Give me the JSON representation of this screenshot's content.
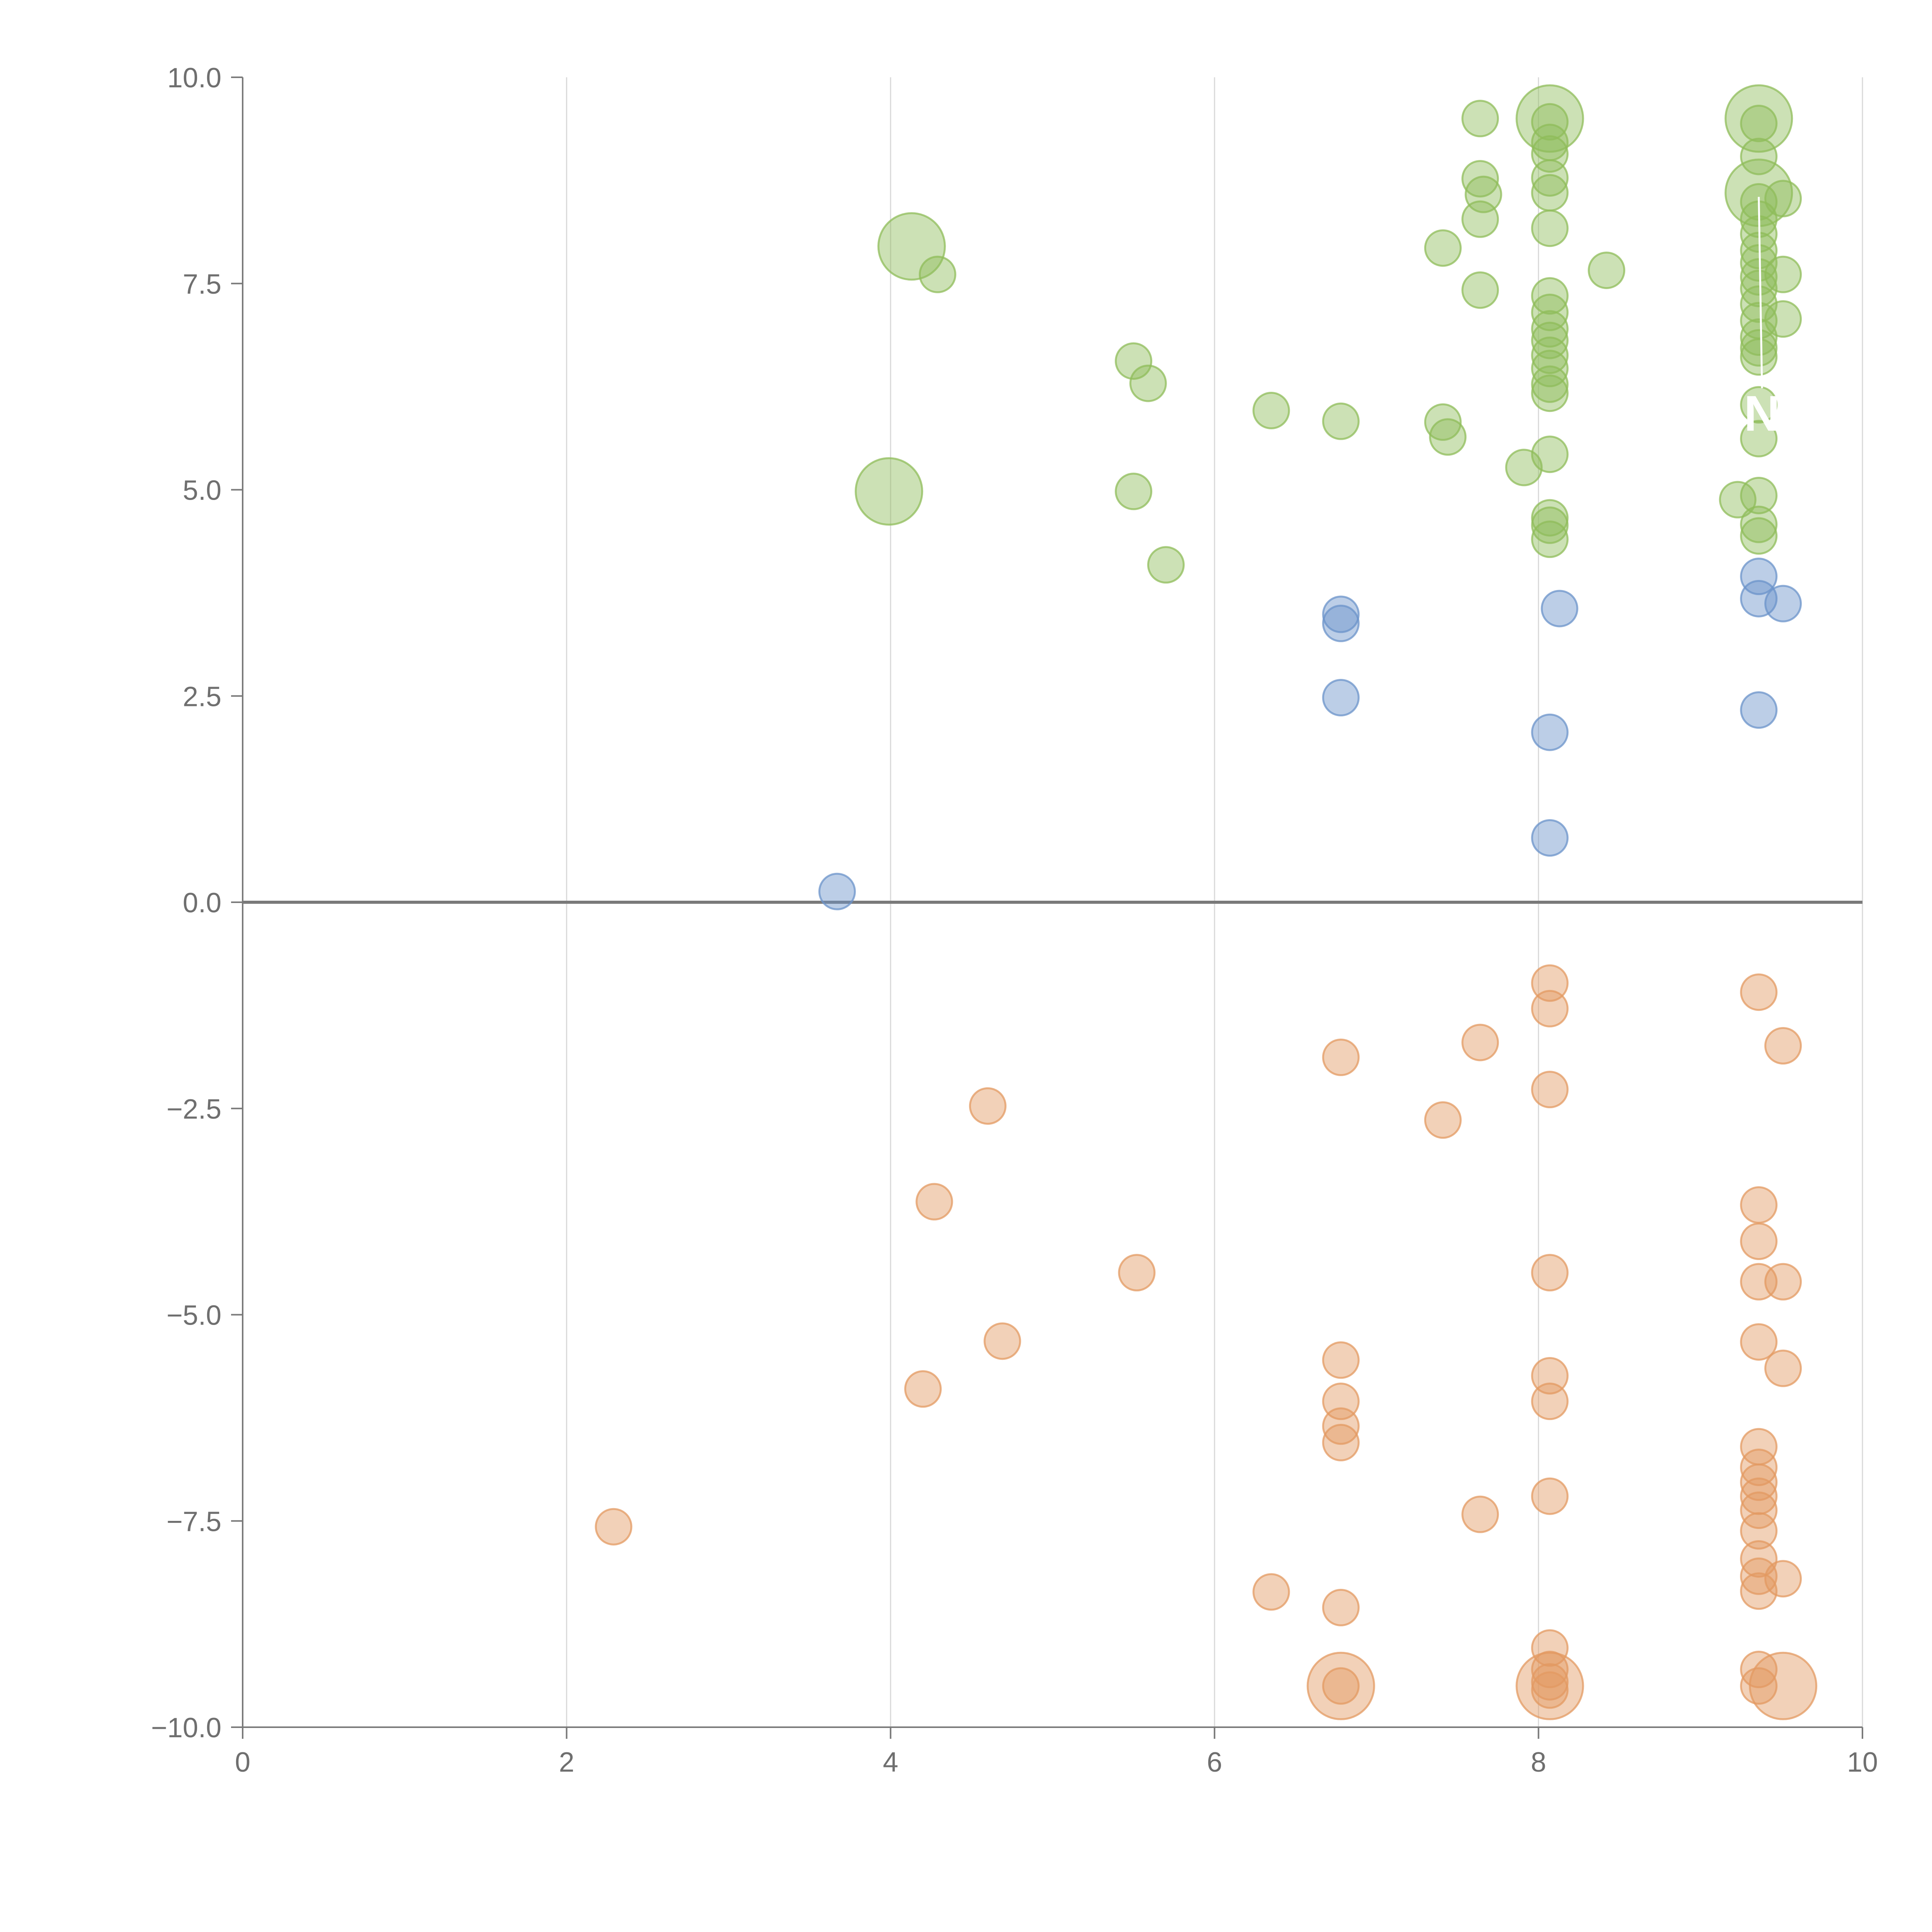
{
  "chart_data": {
    "type": "scatter",
    "title": "",
    "xlabel": "",
    "ylabel": "",
    "xlim": [
      0,
      10
    ],
    "ylim": [
      -10,
      10
    ],
    "x_ticks": [
      0,
      2,
      4,
      6,
      8,
      10
    ],
    "x_tick_labels": [
      "0",
      "2",
      "4",
      "6",
      "8",
      "10"
    ],
    "y_ticks": [
      -10,
      -7.5,
      -5,
      -2.5,
      0,
      2.5,
      5,
      7.5,
      10
    ],
    "y_tick_labels": [
      "−10.0",
      "−7.5",
      "−5.0",
      "−2.5",
      "0.0",
      "2.5",
      "5.0",
      "7.5",
      "10.0"
    ],
    "vertical_grid": true,
    "zero_line": true,
    "point_opacity": 0.45,
    "series": [
      {
        "name": "green",
        "color": "#8fbc5a",
        "points": [
          [
            4.13,
            7.95,
            3
          ],
          [
            4.29,
            7.61,
            1
          ],
          [
            3.99,
            4.98,
            3
          ],
          [
            5.5,
            6.56,
            1
          ],
          [
            5.59,
            6.29,
            1
          ],
          [
            5.5,
            4.98,
            1
          ],
          [
            5.7,
            4.09,
            1
          ],
          [
            6.35,
            5.96,
            1
          ],
          [
            6.78,
            5.83,
            1
          ],
          [
            7.41,
            5.82,
            1
          ],
          [
            7.44,
            5.64,
            1
          ],
          [
            7.41,
            7.93,
            1
          ],
          [
            7.64,
            9.5,
            1
          ],
          [
            7.64,
            8.77,
            1
          ],
          [
            7.66,
            8.58,
            1
          ],
          [
            7.64,
            8.28,
            1
          ],
          [
            7.64,
            7.42,
            1
          ],
          [
            7.91,
            5.27,
            1
          ],
          [
            8.07,
            9.5,
            3
          ],
          [
            8.07,
            9.46,
            1
          ],
          [
            8.07,
            9.21,
            1
          ],
          [
            8.07,
            9.07,
            1
          ],
          [
            8.07,
            8.78,
            1
          ],
          [
            8.07,
            8.6,
            1
          ],
          [
            8.07,
            8.17,
            1
          ],
          [
            8.07,
            7.35,
            1
          ],
          [
            8.07,
            7.15,
            1
          ],
          [
            8.07,
            6.95,
            1
          ],
          [
            8.07,
            6.81,
            1
          ],
          [
            8.07,
            6.63,
            1
          ],
          [
            8.07,
            6.47,
            1
          ],
          [
            8.07,
            6.28,
            1
          ],
          [
            8.07,
            6.17,
            1
          ],
          [
            8.07,
            5.43,
            1
          ],
          [
            8.07,
            4.66,
            1
          ],
          [
            8.07,
            4.57,
            1
          ],
          [
            8.07,
            4.4,
            1
          ],
          [
            8.42,
            7.66,
            1
          ],
          [
            9.36,
            9.5,
            3
          ],
          [
            9.36,
            9.44,
            1
          ],
          [
            9.36,
            9.04,
            1
          ],
          [
            9.36,
            8.6,
            3
          ],
          [
            9.51,
            8.53,
            1
          ],
          [
            9.36,
            8.49,
            1
          ],
          [
            9.36,
            8.28,
            1
          ],
          [
            9.36,
            8.1,
            1
          ],
          [
            9.36,
            7.9,
            1
          ],
          [
            9.36,
            7.75,
            1
          ],
          [
            9.36,
            7.58,
            1
          ],
          [
            9.51,
            7.61,
            1
          ],
          [
            9.36,
            7.44,
            1
          ],
          [
            9.36,
            7.25,
            1
          ],
          [
            9.36,
            7.05,
            1
          ],
          [
            9.51,
            7.07,
            1
          ],
          [
            9.36,
            6.85,
            1
          ],
          [
            9.36,
            6.72,
            1
          ],
          [
            9.36,
            6.61,
            1
          ],
          [
            9.36,
            6.03,
            1
          ],
          [
            9.36,
            5.62,
            1
          ],
          [
            9.36,
            4.93,
            1
          ],
          [
            9.23,
            4.88,
            1
          ],
          [
            9.36,
            4.58,
            1
          ],
          [
            9.36,
            4.44,
            1
          ]
        ]
      },
      {
        "name": "blue",
        "color": "#6b93c9",
        "points": [
          [
            3.67,
            0.13,
            1
          ],
          [
            6.78,
            3.49,
            1
          ],
          [
            6.78,
            3.38,
            1
          ],
          [
            6.78,
            2.48,
            1
          ],
          [
            8.13,
            3.56,
            1
          ],
          [
            8.07,
            2.06,
            1
          ],
          [
            8.07,
            0.78,
            1
          ],
          [
            9.36,
            3.95,
            1
          ],
          [
            9.36,
            3.68,
            1
          ],
          [
            9.51,
            3.62,
            1
          ],
          [
            9.36,
            2.33,
            1
          ]
        ]
      },
      {
        "name": "orange",
        "color": "#e39a62",
        "points": [
          [
            2.29,
            -7.57,
            1
          ],
          [
            4.2,
            -5.9,
            1
          ],
          [
            4.27,
            -3.63,
            1
          ],
          [
            4.6,
            -2.47,
            1
          ],
          [
            4.69,
            -5.32,
            1
          ],
          [
            5.52,
            -4.49,
            1
          ],
          [
            6.35,
            -8.36,
            1
          ],
          [
            6.78,
            -1.88,
            1
          ],
          [
            6.78,
            -5.55,
            1
          ],
          [
            6.78,
            -6.05,
            1
          ],
          [
            6.78,
            -6.35,
            1
          ],
          [
            6.78,
            -6.55,
            1
          ],
          [
            6.78,
            -8.55,
            1
          ],
          [
            6.78,
            -9.5,
            3
          ],
          [
            6.78,
            -9.5,
            1
          ],
          [
            7.41,
            -2.64,
            1
          ],
          [
            7.64,
            -1.7,
            1
          ],
          [
            7.64,
            -7.42,
            1
          ],
          [
            8.07,
            -0.98,
            1
          ],
          [
            8.07,
            -1.29,
            1
          ],
          [
            8.07,
            -2.27,
            1
          ],
          [
            8.07,
            -4.49,
            1
          ],
          [
            8.07,
            -5.74,
            1
          ],
          [
            8.07,
            -6.05,
            1
          ],
          [
            8.07,
            -7.2,
            1
          ],
          [
            8.07,
            -9.04,
            1
          ],
          [
            8.07,
            -9.3,
            1
          ],
          [
            8.07,
            -9.45,
            1
          ],
          [
            8.07,
            -9.5,
            3
          ],
          [
            8.07,
            -9.55,
            1
          ],
          [
            9.36,
            -1.09,
            1
          ],
          [
            9.51,
            -1.74,
            1
          ],
          [
            9.36,
            -3.67,
            1
          ],
          [
            9.36,
            -4.11,
            1
          ],
          [
            9.36,
            -4.6,
            1
          ],
          [
            9.51,
            -4.6,
            1
          ],
          [
            9.36,
            -5.33,
            1
          ],
          [
            9.51,
            -5.65,
            1
          ],
          [
            9.36,
            -6.6,
            1
          ],
          [
            9.36,
            -6.85,
            1
          ],
          [
            9.36,
            -7.03,
            1
          ],
          [
            9.36,
            -7.2,
            1
          ],
          [
            9.36,
            -7.37,
            1
          ],
          [
            9.36,
            -7.62,
            1
          ],
          [
            9.36,
            -7.96,
            1
          ],
          [
            9.36,
            -8.17,
            1
          ],
          [
            9.51,
            -8.2,
            1
          ],
          [
            9.36,
            -8.35,
            1
          ],
          [
            9.36,
            -9.3,
            1
          ],
          [
            9.36,
            -9.5,
            1
          ],
          [
            9.51,
            -9.5,
            3
          ]
        ]
      }
    ]
  },
  "annotations": [
    {
      "text": "N",
      "x": 9.38,
      "y": 5.95,
      "leader_from": [
        9.36,
        8.55
      ]
    }
  ]
}
